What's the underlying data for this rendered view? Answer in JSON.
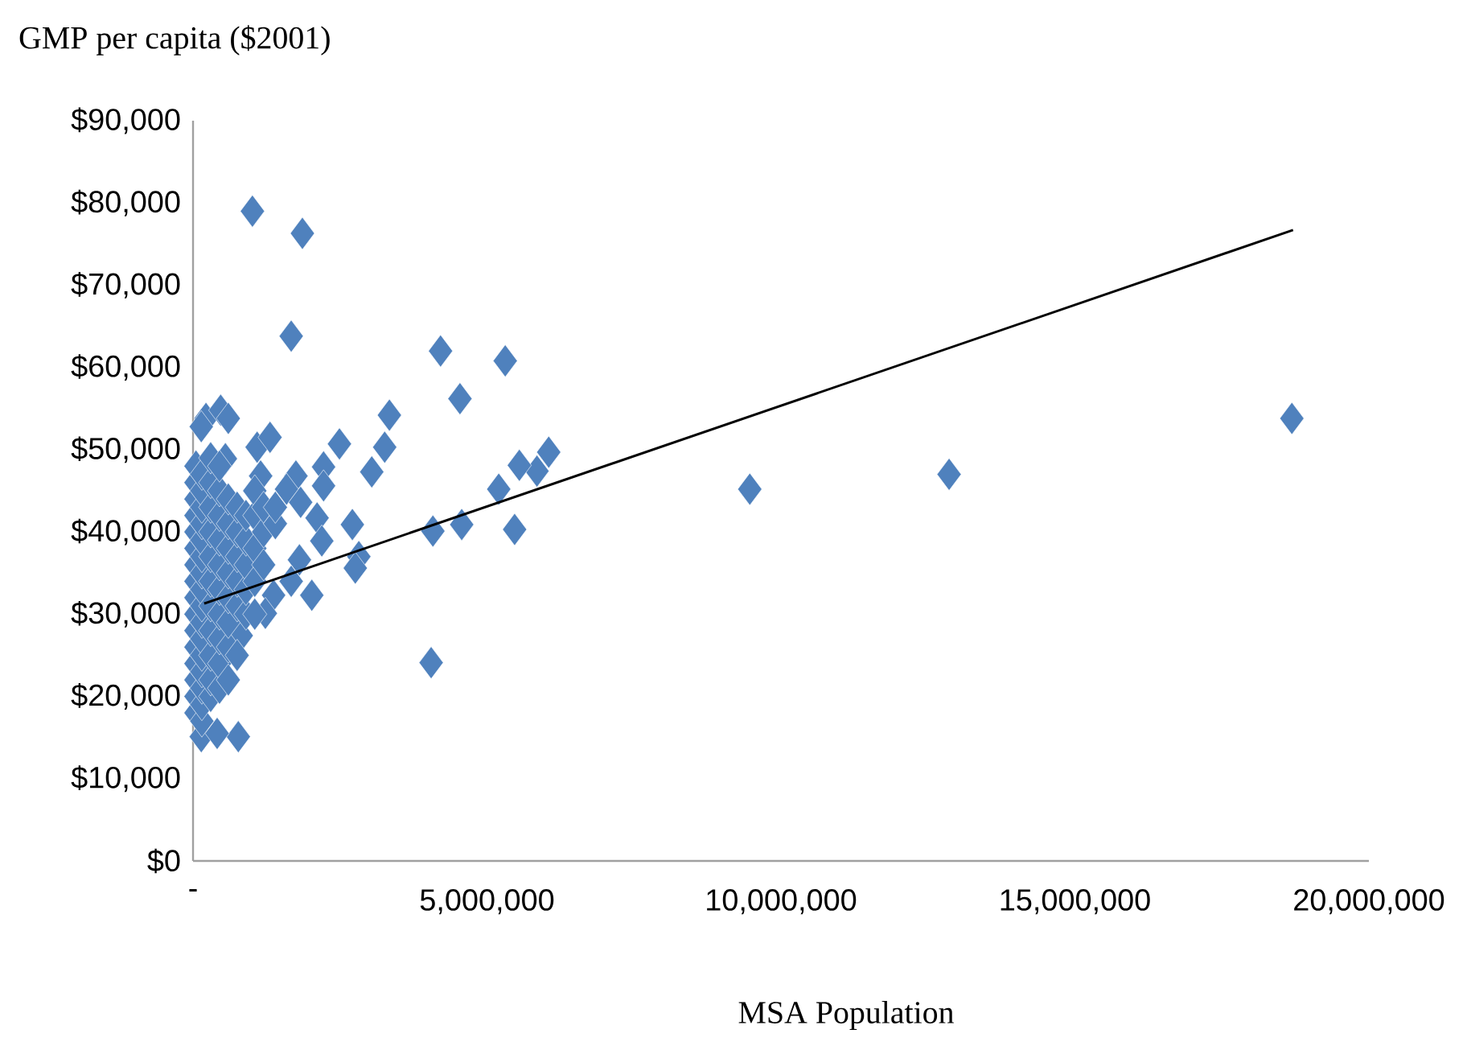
{
  "chart_data": {
    "type": "scatter",
    "ylabel": "GMP per capita ($2001)",
    "xlabel": "MSA Population",
    "xlim": [
      0,
      20000000
    ],
    "xticks": [
      {
        "value": 0,
        "label": "-"
      },
      {
        "value": 5000000,
        "label": "5,000,000"
      },
      {
        "value": 10000000,
        "label": "10,000,000"
      },
      {
        "value": 15000000,
        "label": "15,000,000"
      },
      {
        "value": 20000000,
        "label": "20,000,000"
      }
    ],
    "ylim": [
      0,
      90000
    ],
    "yticks": [
      {
        "value": 0,
        "label": "$0"
      },
      {
        "value": 10000,
        "label": "$10,000"
      },
      {
        "value": 20000,
        "label": "$20,000"
      },
      {
        "value": 30000,
        "label": "$30,000"
      },
      {
        "value": 40000,
        "label": "$40,000"
      },
      {
        "value": 50000,
        "label": "$50,000"
      },
      {
        "value": 60000,
        "label": "$60,000"
      },
      {
        "value": 70000,
        "label": "$70,000"
      },
      {
        "value": 80000,
        "label": "$80,000"
      },
      {
        "value": 90000,
        "label": "$90,000"
      }
    ],
    "grid": false,
    "series": [
      {
        "type": "scatter",
        "color": "#4f81bd",
        "marker": "diamond",
        "x": [
          1010000,
          1860000,
          1670000,
          4210000,
          5310000,
          4540000,
          3340000,
          18690000,
          12860000,
          9470000,
          6050000,
          5850000,
          5550000,
          5200000,
          5470000,
          4570000,
          4080000,
          4050000,
          3260000,
          2490000,
          3040000,
          2710000,
          2820000,
          2760000,
          2220000,
          2220000,
          1750000,
          1590000,
          1830000,
          2110000,
          2190000,
          1810000,
          2020000,
          1670000,
          1370000,
          1230000,
          820000,
          770000,
          140000,
          410000,
          220000,
          470000,
          600000,
          140000,
          1090000,
          1310000,
          1150000,
          550000,
          50000,
          50000,
          50000,
          50000,
          50000,
          50000,
          50000,
          50000,
          50000,
          50000,
          50000,
          50000,
          50000,
          50000,
          50000,
          50000,
          150000,
          150000,
          150000,
          150000,
          150000,
          150000,
          150000,
          150000,
          150000,
          150000,
          150000,
          150000,
          150000,
          150000,
          150000,
          150000,
          300000,
          300000,
          300000,
          300000,
          300000,
          300000,
          300000,
          300000,
          300000,
          300000,
          300000,
          450000,
          450000,
          450000,
          450000,
          450000,
          450000,
          450000,
          450000,
          450000,
          450000,
          600000,
          600000,
          600000,
          600000,
          600000,
          600000,
          600000,
          600000,
          750000,
          750000,
          750000,
          750000,
          750000,
          750000,
          900000,
          900000,
          900000,
          900000,
          900000,
          1050000,
          1050000,
          1050000,
          1050000,
          1050000,
          1200000,
          1200000,
          1200000,
          1400000,
          1400000
        ],
        "values": [
          79000,
          76300,
          63800,
          62000,
          60800,
          56200,
          54200,
          53800,
          47000,
          45200,
          49700,
          47400,
          48100,
          45200,
          40300,
          40900,
          40100,
          24100,
          50300,
          50700,
          47300,
          40900,
          37000,
          35600,
          47900,
          45600,
          46800,
          45200,
          43600,
          41700,
          38900,
          36600,
          32300,
          34000,
          32300,
          30100,
          27400,
          15100,
          15100,
          15500,
          53800,
          54800,
          53800,
          52800,
          50300,
          51500,
          46800,
          48900,
          18000,
          20000,
          22000,
          24000,
          26000,
          28000,
          30000,
          32000,
          34000,
          36000,
          38000,
          40000,
          42000,
          44000,
          46000,
          48000,
          17000,
          19000,
          21000,
          23000,
          25000,
          27000,
          29000,
          31000,
          33000,
          35000,
          37000,
          39000,
          41000,
          43000,
          45000,
          47000,
          20000,
          22000,
          25000,
          28000,
          31000,
          34000,
          37000,
          40000,
          43000,
          46000,
          49000,
          21000,
          24000,
          27000,
          30000,
          33000,
          36000,
          39000,
          42000,
          45000,
          48000,
          22000,
          26000,
          29000,
          32000,
          35000,
          38000,
          41000,
          44000,
          25000,
          31000,
          34000,
          37000,
          40000,
          43000,
          30000,
          33000,
          36000,
          39000,
          42000,
          30000,
          34000,
          38000,
          42000,
          45000,
          36000,
          40000,
          43000,
          41000,
          43000
        ]
      },
      {
        "type": "line",
        "color": "#000000",
        "marker": "none",
        "x": [
          190000,
          18710000
        ],
        "values": [
          31300,
          76700
        ]
      }
    ]
  }
}
